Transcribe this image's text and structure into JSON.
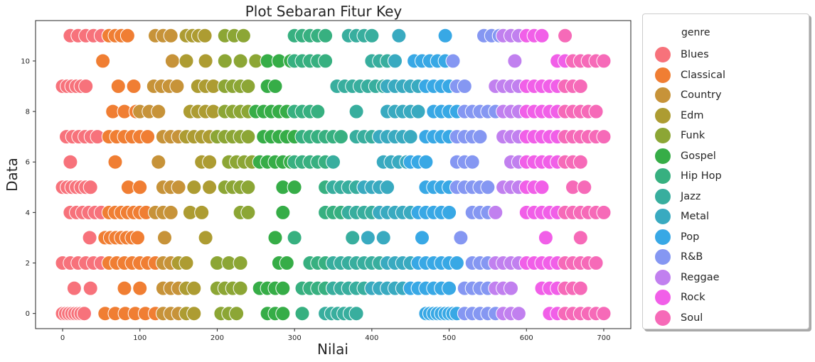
{
  "chart_data": {
    "type": "scatter",
    "title": "Plot Sebaran Fitur Key",
    "xlabel": "Nilai",
    "ylabel": "Data",
    "xlim": [
      -35,
      735
    ],
    "ylim": [
      -0.6,
      11.6
    ],
    "xticks": [
      0,
      100,
      200,
      300,
      400,
      500,
      600,
      700
    ],
    "yticks": [
      0,
      2,
      4,
      6,
      8,
      10
    ],
    "grid": false,
    "legend": {
      "title": "genre",
      "placement": "outside-right",
      "entries": [
        "Blues",
        "Classical",
        "Country",
        "Edm",
        "Funk",
        "Gospel",
        "Hip Hop",
        "Jazz",
        "Metal",
        "Pop",
        "R&B",
        "Reggae",
        "Rock",
        "Soul"
      ]
    },
    "colors": {
      "Blues": "#f7727b",
      "Classical": "#f07e33",
      "Country": "#c79339",
      "Edm": "#ad9c32",
      "Funk": "#8ca635",
      "Gospel": "#36ad47",
      "Hip Hop": "#37b080",
      "Jazz": "#38ae9e",
      "Metal": "#39aac0",
      "Pop": "#38a8e5",
      "R&B": "#8597f2",
      "Reggae": "#c180ef",
      "Rock": "#f15fe8",
      "Soul": "#f66ab8"
    },
    "series": [
      {
        "name": "Blues",
        "ranges": [
          [
            0,
            0,
            30,
            4
          ],
          [
            1,
            15,
            36,
            21
          ],
          [
            2,
            0,
            70,
            10
          ],
          [
            3,
            35,
            35,
            1
          ],
          [
            4,
            10,
            50,
            8
          ],
          [
            5,
            0,
            40,
            6
          ],
          [
            6,
            10,
            10,
            1
          ],
          [
            7,
            5,
            50,
            8
          ],
          [
            8,
            0,
            0,
            0
          ],
          [
            9,
            0,
            30,
            6
          ],
          [
            10,
            0,
            0,
            0
          ],
          [
            11,
            10,
            60,
            10
          ]
        ]
      },
      {
        "name": "Classical",
        "ranges": [
          [
            0,
            55,
            120,
            13
          ],
          [
            1,
            80,
            100,
            20
          ],
          [
            2,
            60,
            130,
            10
          ],
          [
            3,
            55,
            100,
            7
          ],
          [
            4,
            60,
            110,
            8
          ],
          [
            5,
            85,
            100,
            15
          ],
          [
            6,
            68,
            68,
            1
          ],
          [
            7,
            60,
            110,
            10
          ],
          [
            8,
            65,
            95,
            15
          ],
          [
            9,
            72,
            92,
            20
          ],
          [
            10,
            52,
            52,
            1
          ],
          [
            11,
            60,
            85,
            8
          ]
        ]
      },
      {
        "name": "Country",
        "ranges": [
          [
            0,
            130,
            160,
            10
          ],
          [
            1,
            130,
            160,
            10
          ],
          [
            2,
            130,
            160,
            10
          ],
          [
            3,
            132,
            132,
            1
          ],
          [
            4,
            120,
            140,
            10
          ],
          [
            5,
            130,
            150,
            10
          ],
          [
            6,
            124,
            124,
            1
          ],
          [
            7,
            130,
            150,
            10
          ],
          [
            8,
            100,
            125,
            12
          ],
          [
            9,
            118,
            150,
            10
          ],
          [
            10,
            142,
            142,
            1
          ],
          [
            11,
            120,
            140,
            10
          ]
        ]
      },
      {
        "name": "Edm",
        "ranges": [
          [
            0,
            160,
            170,
            10
          ],
          [
            1,
            160,
            170,
            10
          ],
          [
            2,
            150,
            160,
            10
          ],
          [
            3,
            185,
            185,
            1
          ],
          [
            4,
            165,
            180,
            15
          ],
          [
            5,
            170,
            190,
            20
          ],
          [
            6,
            180,
            190,
            10
          ],
          [
            7,
            160,
            190,
            10
          ],
          [
            8,
            165,
            195,
            10
          ],
          [
            9,
            175,
            200,
            10
          ],
          [
            10,
            160,
            185,
            25
          ],
          [
            11,
            160,
            185,
            8
          ]
        ]
      },
      {
        "name": "Funk",
        "ranges": [
          [
            0,
            205,
            230,
            10
          ],
          [
            1,
            200,
            230,
            10
          ],
          [
            2,
            200,
            230,
            15
          ],
          [
            3,
            0,
            0,
            0
          ],
          [
            4,
            230,
            240,
            10
          ],
          [
            5,
            210,
            240,
            10
          ],
          [
            6,
            215,
            250,
            10
          ],
          [
            7,
            200,
            240,
            10
          ],
          [
            8,
            210,
            240,
            10
          ],
          [
            9,
            210,
            240,
            10
          ],
          [
            10,
            210,
            250,
            20
          ],
          [
            11,
            210,
            240,
            12
          ]
        ]
      },
      {
        "name": "Gospel",
        "ranges": [
          [
            0,
            265,
            290,
            10
          ],
          [
            1,
            255,
            290,
            10
          ],
          [
            2,
            280,
            295,
            10
          ],
          [
            3,
            275,
            275,
            1
          ],
          [
            4,
            285,
            285,
            1
          ],
          [
            5,
            285,
            300,
            15
          ],
          [
            6,
            255,
            300,
            10
          ],
          [
            7,
            260,
            300,
            10
          ],
          [
            8,
            250,
            300,
            10
          ],
          [
            9,
            265,
            275,
            10
          ],
          [
            10,
            265,
            310,
            15
          ],
          [
            11,
            0,
            0,
            0
          ]
        ]
      },
      {
        "name": "Hip Hop",
        "ranges": [
          [
            0,
            310,
            340,
            30
          ],
          [
            1,
            310,
            350,
            10
          ],
          [
            2,
            320,
            360,
            10
          ],
          [
            3,
            300,
            300,
            1
          ],
          [
            4,
            340,
            370,
            10
          ],
          [
            5,
            340,
            390,
            10
          ],
          [
            6,
            300,
            340,
            10
          ],
          [
            7,
            310,
            360,
            10
          ],
          [
            8,
            300,
            330,
            10
          ],
          [
            9,
            0,
            0,
            0
          ],
          [
            10,
            300,
            340,
            10
          ],
          [
            11,
            300,
            340,
            10
          ]
        ]
      },
      {
        "name": "Jazz",
        "ranges": [
          [
            0,
            340,
            380,
            8
          ],
          [
            1,
            350,
            400,
            10
          ],
          [
            2,
            350,
            420,
            10
          ],
          [
            3,
            375,
            375,
            1
          ],
          [
            4,
            370,
            410,
            10
          ],
          [
            5,
            350,
            400,
            10
          ],
          [
            6,
            350,
            350,
            1
          ],
          [
            7,
            380,
            420,
            10
          ],
          [
            8,
            380,
            380,
            1
          ],
          [
            9,
            355,
            420,
            10
          ],
          [
            10,
            400,
            430,
            10
          ],
          [
            11,
            370,
            400,
            10
          ]
        ]
      },
      {
        "name": "Metal",
        "ranges": [
          [
            0,
            0,
            0,
            0
          ],
          [
            1,
            400,
            450,
            10
          ],
          [
            2,
            420,
            460,
            10
          ],
          [
            3,
            395,
            415,
            20
          ],
          [
            4,
            410,
            450,
            10
          ],
          [
            5,
            390,
            420,
            10
          ],
          [
            6,
            415,
            450,
            10
          ],
          [
            7,
            410,
            450,
            10
          ],
          [
            8,
            420,
            460,
            10
          ],
          [
            9,
            420,
            470,
            10
          ],
          [
            10,
            430,
            430,
            1
          ],
          [
            11,
            435,
            435,
            1
          ]
        ]
      },
      {
        "name": "Pop",
        "ranges": [
          [
            0,
            470,
            510,
            5
          ],
          [
            1,
            450,
            500,
            10
          ],
          [
            2,
            460,
            510,
            10
          ],
          [
            3,
            465,
            465,
            1
          ],
          [
            4,
            460,
            500,
            10
          ],
          [
            5,
            470,
            500,
            10
          ],
          [
            6,
            450,
            470,
            10
          ],
          [
            7,
            470,
            500,
            10
          ],
          [
            8,
            480,
            510,
            10
          ],
          [
            9,
            470,
            510,
            10
          ],
          [
            10,
            455,
            500,
            10
          ],
          [
            11,
            495,
            495,
            1
          ]
        ]
      },
      {
        "name": "R&B",
        "ranges": [
          [
            0,
            520,
            560,
            10
          ],
          [
            1,
            520,
            550,
            10
          ],
          [
            2,
            530,
            550,
            10
          ],
          [
            3,
            515,
            515,
            1
          ],
          [
            4,
            530,
            560,
            10
          ],
          [
            5,
            510,
            550,
            10
          ],
          [
            6,
            510,
            530,
            10
          ],
          [
            7,
            510,
            540,
            10
          ],
          [
            8,
            520,
            560,
            10
          ],
          [
            9,
            510,
            520,
            10
          ],
          [
            10,
            505,
            505,
            1
          ],
          [
            11,
            545,
            570,
            10
          ]
        ]
      },
      {
        "name": "Reggae",
        "ranges": [
          [
            0,
            570,
            590,
            10
          ],
          [
            1,
            560,
            580,
            10
          ],
          [
            2,
            560,
            600,
            10
          ],
          [
            3,
            0,
            0,
            0
          ],
          [
            4,
            560,
            560,
            1
          ],
          [
            5,
            570,
            600,
            10
          ],
          [
            6,
            580,
            590,
            10
          ],
          [
            7,
            570,
            600,
            10
          ],
          [
            8,
            570,
            590,
            10
          ],
          [
            9,
            560,
            600,
            10
          ],
          [
            10,
            585,
            585,
            1
          ],
          [
            11,
            570,
            590,
            10
          ]
        ]
      },
      {
        "name": "Rock",
        "ranges": [
          [
            0,
            630,
            650,
            10
          ],
          [
            1,
            620,
            650,
            10
          ],
          [
            2,
            600,
            640,
            10
          ],
          [
            3,
            625,
            625,
            1
          ],
          [
            4,
            600,
            640,
            10
          ],
          [
            5,
            600,
            620,
            10
          ],
          [
            6,
            600,
            640,
            10
          ],
          [
            7,
            600,
            640,
            10
          ],
          [
            8,
            600,
            640,
            10
          ],
          [
            9,
            600,
            640,
            10
          ],
          [
            10,
            640,
            660,
            10
          ],
          [
            11,
            600,
            620,
            10
          ]
        ]
      },
      {
        "name": "Soul",
        "ranges": [
          [
            0,
            650,
            700,
            10
          ],
          [
            1,
            650,
            670,
            10
          ],
          [
            2,
            650,
            690,
            10
          ],
          [
            3,
            670,
            670,
            1
          ],
          [
            4,
            650,
            700,
            10
          ],
          [
            5,
            660,
            675,
            15
          ],
          [
            6,
            650,
            670,
            10
          ],
          [
            7,
            650,
            700,
            10
          ],
          [
            8,
            650,
            690,
            10
          ],
          [
            9,
            650,
            675,
            10
          ],
          [
            10,
            660,
            700,
            10
          ],
          [
            11,
            650,
            650,
            1
          ]
        ]
      }
    ]
  }
}
